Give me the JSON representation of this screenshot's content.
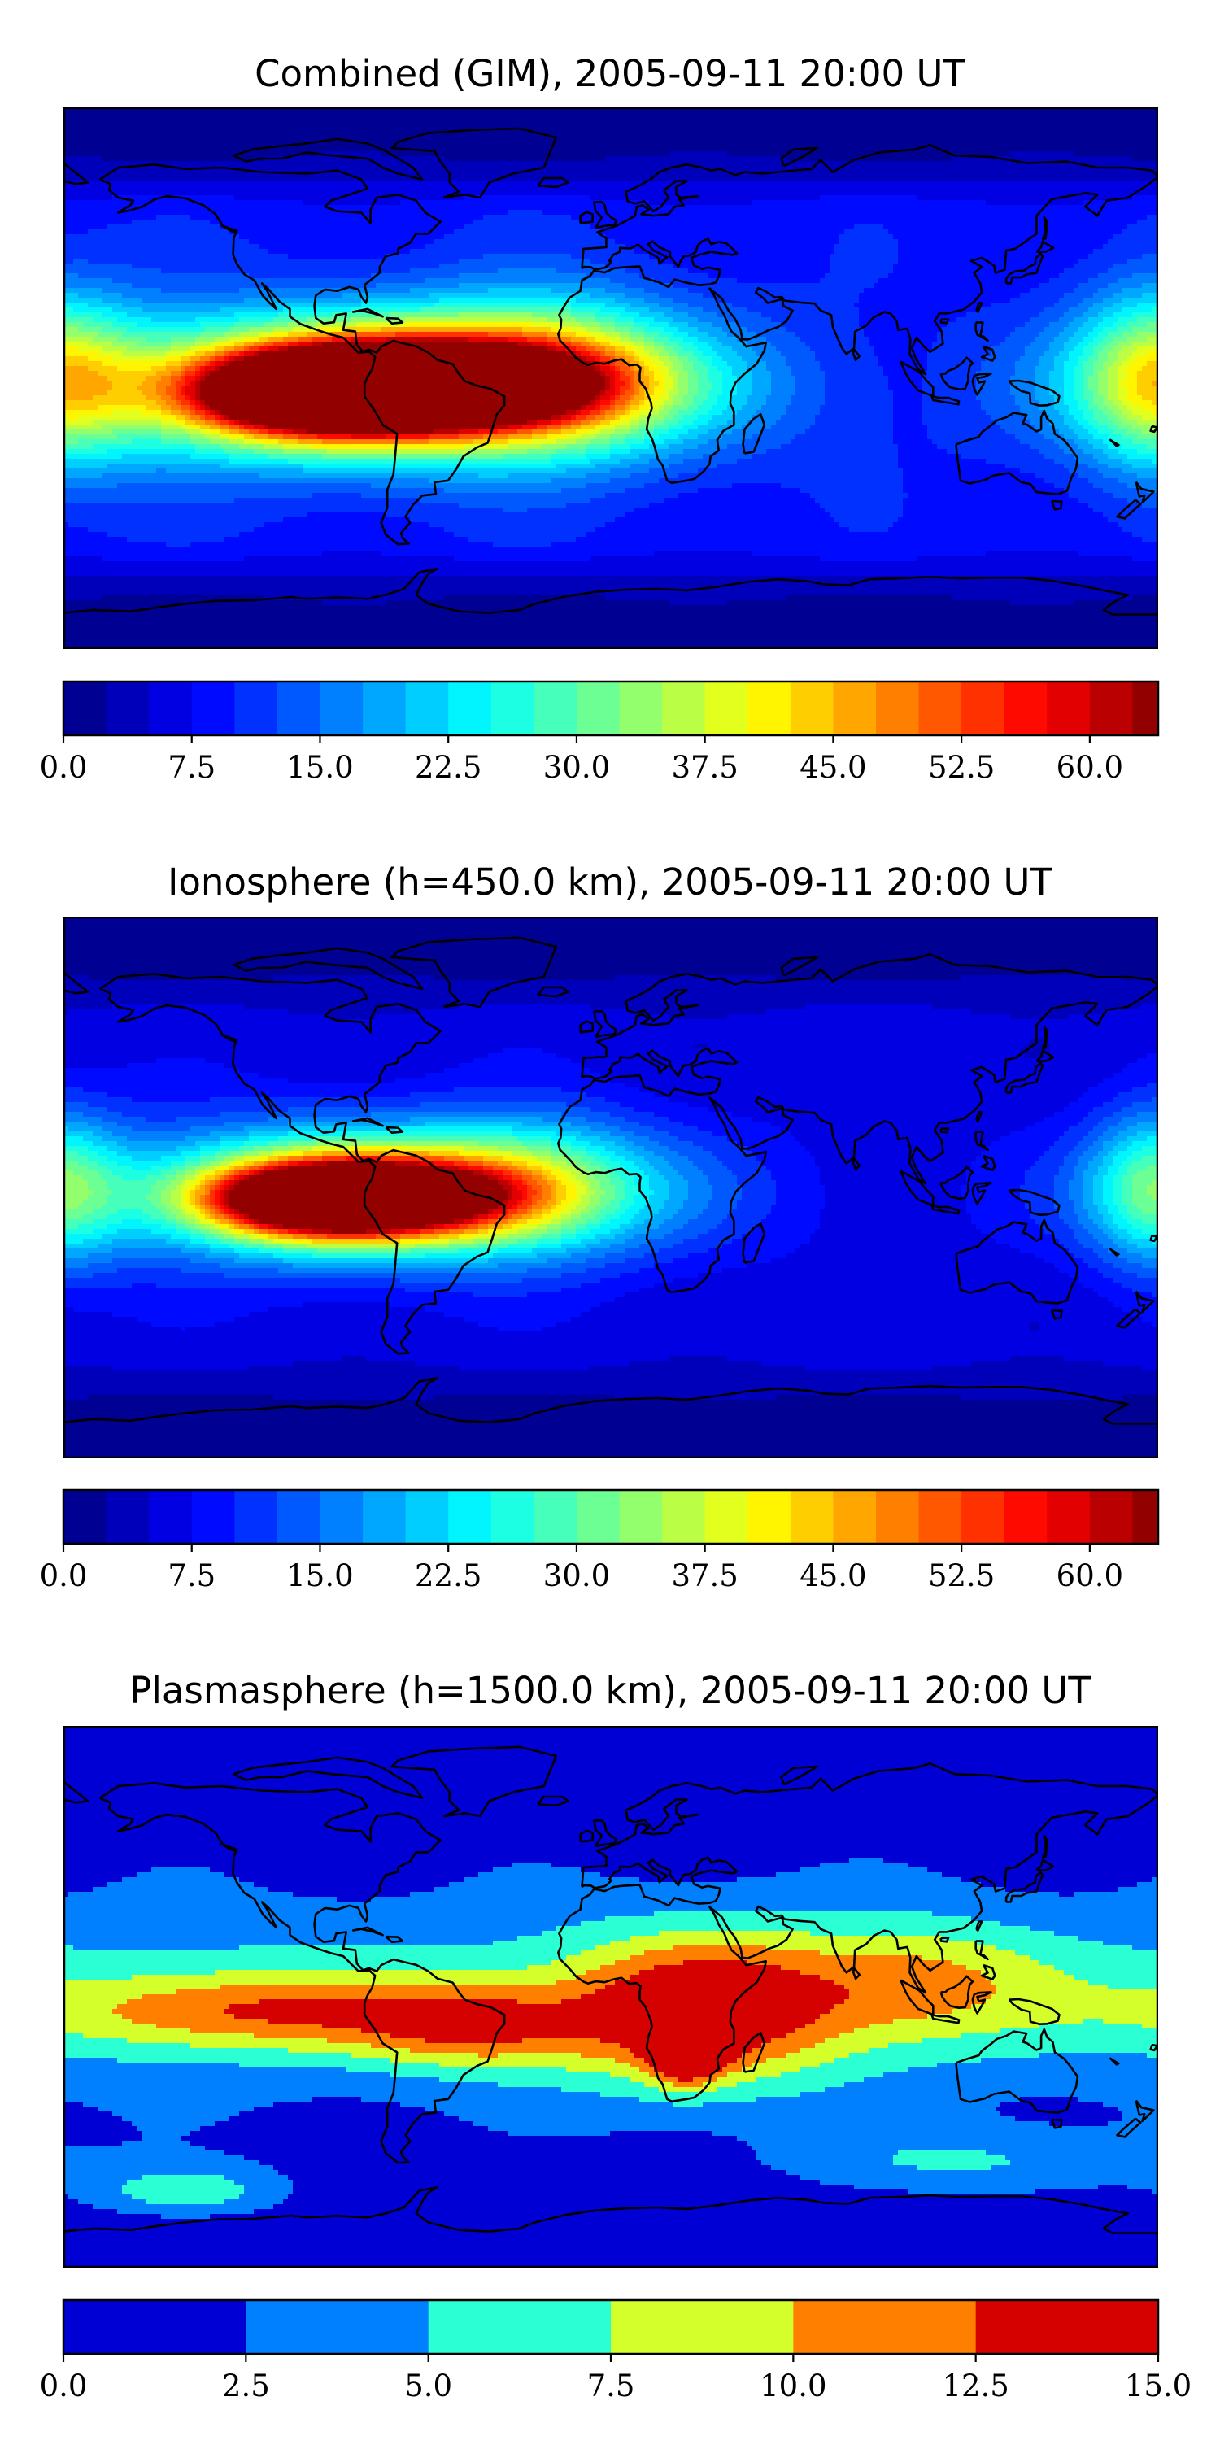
{
  "chart_data": [
    {
      "type": "heatmap",
      "title": "Combined (GIM), 2005-09-11 20:00 UT",
      "colorbar": {
        "ticks": [
          "0.0",
          "7.5",
          "15.0",
          "22.5",
          "30.0",
          "37.5",
          "45.0",
          "52.5",
          "60.0"
        ],
        "min": 0,
        "max": 64,
        "step": 2.5,
        "levels": 26
      },
      "features": [
        {
          "lon": -60,
          "lat": -2,
          "peak": 55,
          "sx": 38,
          "sy": 10
        },
        {
          "lon": -95,
          "lat": -5,
          "peak": 50,
          "sx": 28,
          "sy": 9
        },
        {
          "lon": -80,
          "lat": -3,
          "peak": 40,
          "sx": 70,
          "sy": 17
        },
        {
          "lon": -20,
          "lat": 2,
          "peak": 18,
          "sx": 30,
          "sy": 18
        },
        {
          "lon": 178,
          "lat": 0,
          "peak": 22,
          "sx": 18,
          "sy": 20
        }
      ],
      "background": 9
    },
    {
      "type": "heatmap",
      "title": "Ionosphere  (h=450.0 km), 2005-09-11 20:00 UT",
      "colorbar": {
        "ticks": [
          "0.0",
          "7.5",
          "15.0",
          "22.5",
          "30.0",
          "37.5",
          "45.0",
          "52.5",
          "60.0"
        ],
        "min": 0,
        "max": 64,
        "step": 2.5,
        "levels": 26
      },
      "features": [
        {
          "lon": -72,
          "lat": -3,
          "peak": 46,
          "sx": 30,
          "sy": 9
        },
        {
          "lon": -100,
          "lat": -4,
          "peak": 42,
          "sx": 24,
          "sy": 8
        },
        {
          "lon": -80,
          "lat": -2,
          "peak": 32,
          "sx": 65,
          "sy": 16
        },
        {
          "lon": -25,
          "lat": 2,
          "peak": 12,
          "sx": 25,
          "sy": 15
        },
        {
          "lon": 178,
          "lat": 0,
          "peak": 18,
          "sx": 15,
          "sy": 18
        }
      ],
      "background": 6
    },
    {
      "type": "heatmap",
      "title": "Plasmasphere (h=1500.0 km), 2005-09-11 20:00 UT",
      "colorbar": {
        "ticks": [
          "0.0",
          "2.5",
          "5.0",
          "7.5",
          "10.0",
          "12.5",
          "15.0"
        ],
        "min": 0,
        "max": 15,
        "step": 2.5,
        "levels": 6
      },
      "features": [
        {
          "lon": 30,
          "lat": -5,
          "peak": 10.5,
          "sx": 32,
          "sy": 18
        },
        {
          "lon": 25,
          "lat": -18,
          "peak": 12.2,
          "sx": 8,
          "sy": 7
        },
        {
          "lon": -45,
          "lat": -10,
          "peak": 7.5,
          "sx": 28,
          "sy": 10
        },
        {
          "lon": -120,
          "lat": -5,
          "peak": 7.2,
          "sx": 45,
          "sy": 9
        },
        {
          "lon": -140,
          "lat": -65,
          "peak": 5.8,
          "sx": 22,
          "sy": 6
        },
        {
          "lon": 100,
          "lat": 5,
          "peak": 5.5,
          "sx": 30,
          "sy": 14
        },
        {
          "lon": 120,
          "lat": -55,
          "peak": 3.8,
          "sx": 40,
          "sy": 8
        }
      ],
      "band": {
        "peak": 4.2,
        "lat": 0,
        "sy": 30
      },
      "background": 1.5
    }
  ]
}
